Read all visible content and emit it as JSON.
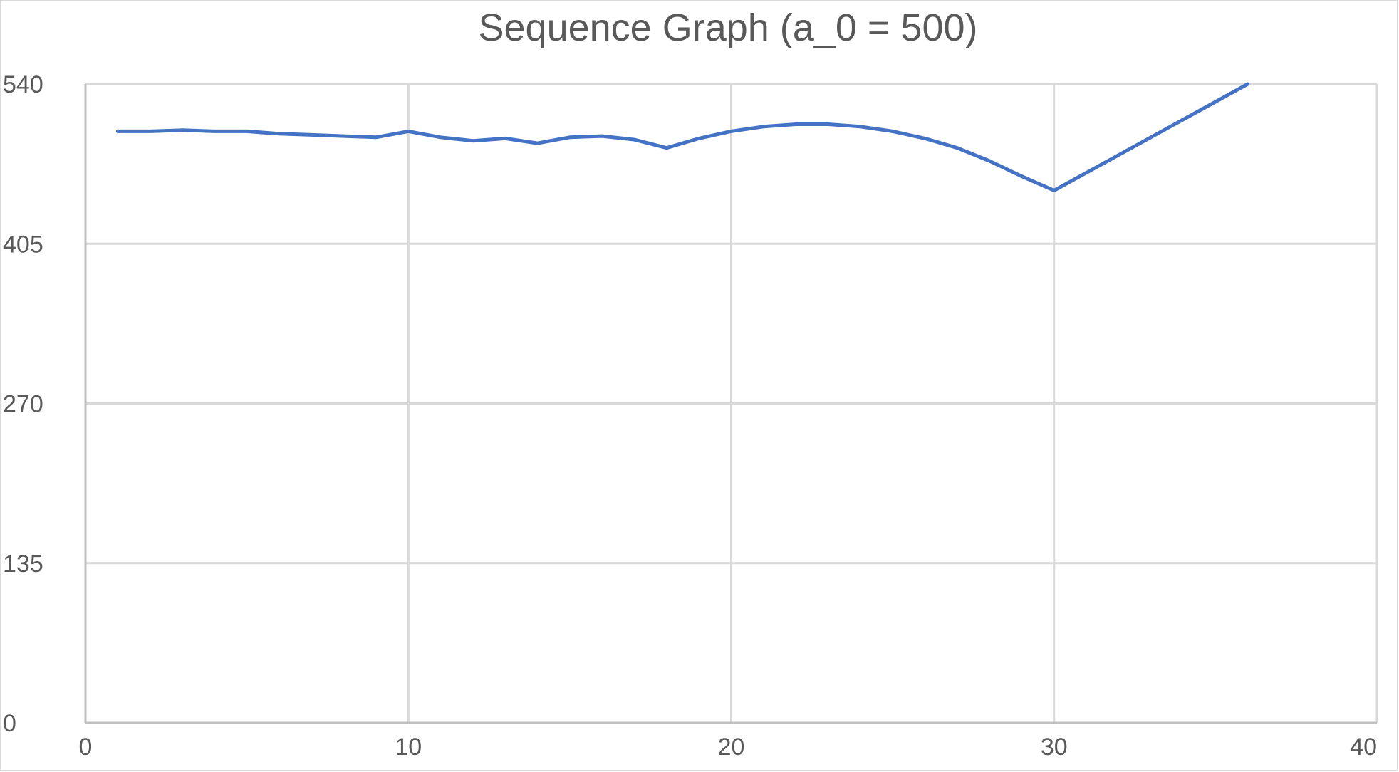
{
  "chart_data": {
    "type": "line",
    "title": "Sequence Graph (a_0 = 500)",
    "xlabel": "",
    "ylabel": "",
    "xlim": [
      0,
      40
    ],
    "ylim": [
      0,
      540
    ],
    "x_ticks": [
      0,
      10,
      20,
      30,
      40
    ],
    "y_ticks": [
      0,
      135,
      270,
      405,
      540
    ],
    "grid": true,
    "legend": "none",
    "series": [
      {
        "color": "#4472c4",
        "x": [
          1,
          2,
          3,
          4,
          5,
          6,
          7,
          8,
          9,
          10,
          11,
          12,
          13,
          14,
          15,
          16,
          17,
          18,
          19,
          20,
          21,
          22,
          23,
          24,
          25,
          26,
          27,
          28,
          29,
          30,
          36
        ],
        "y": [
          500,
          500,
          501,
          500,
          500,
          498,
          497,
          496,
          495,
          500,
          495,
          492,
          494,
          490,
          495,
          496,
          493,
          486,
          494,
          500,
          504,
          506,
          506,
          504,
          500,
          494,
          486,
          475,
          462,
          450,
          540
        ]
      }
    ]
  }
}
